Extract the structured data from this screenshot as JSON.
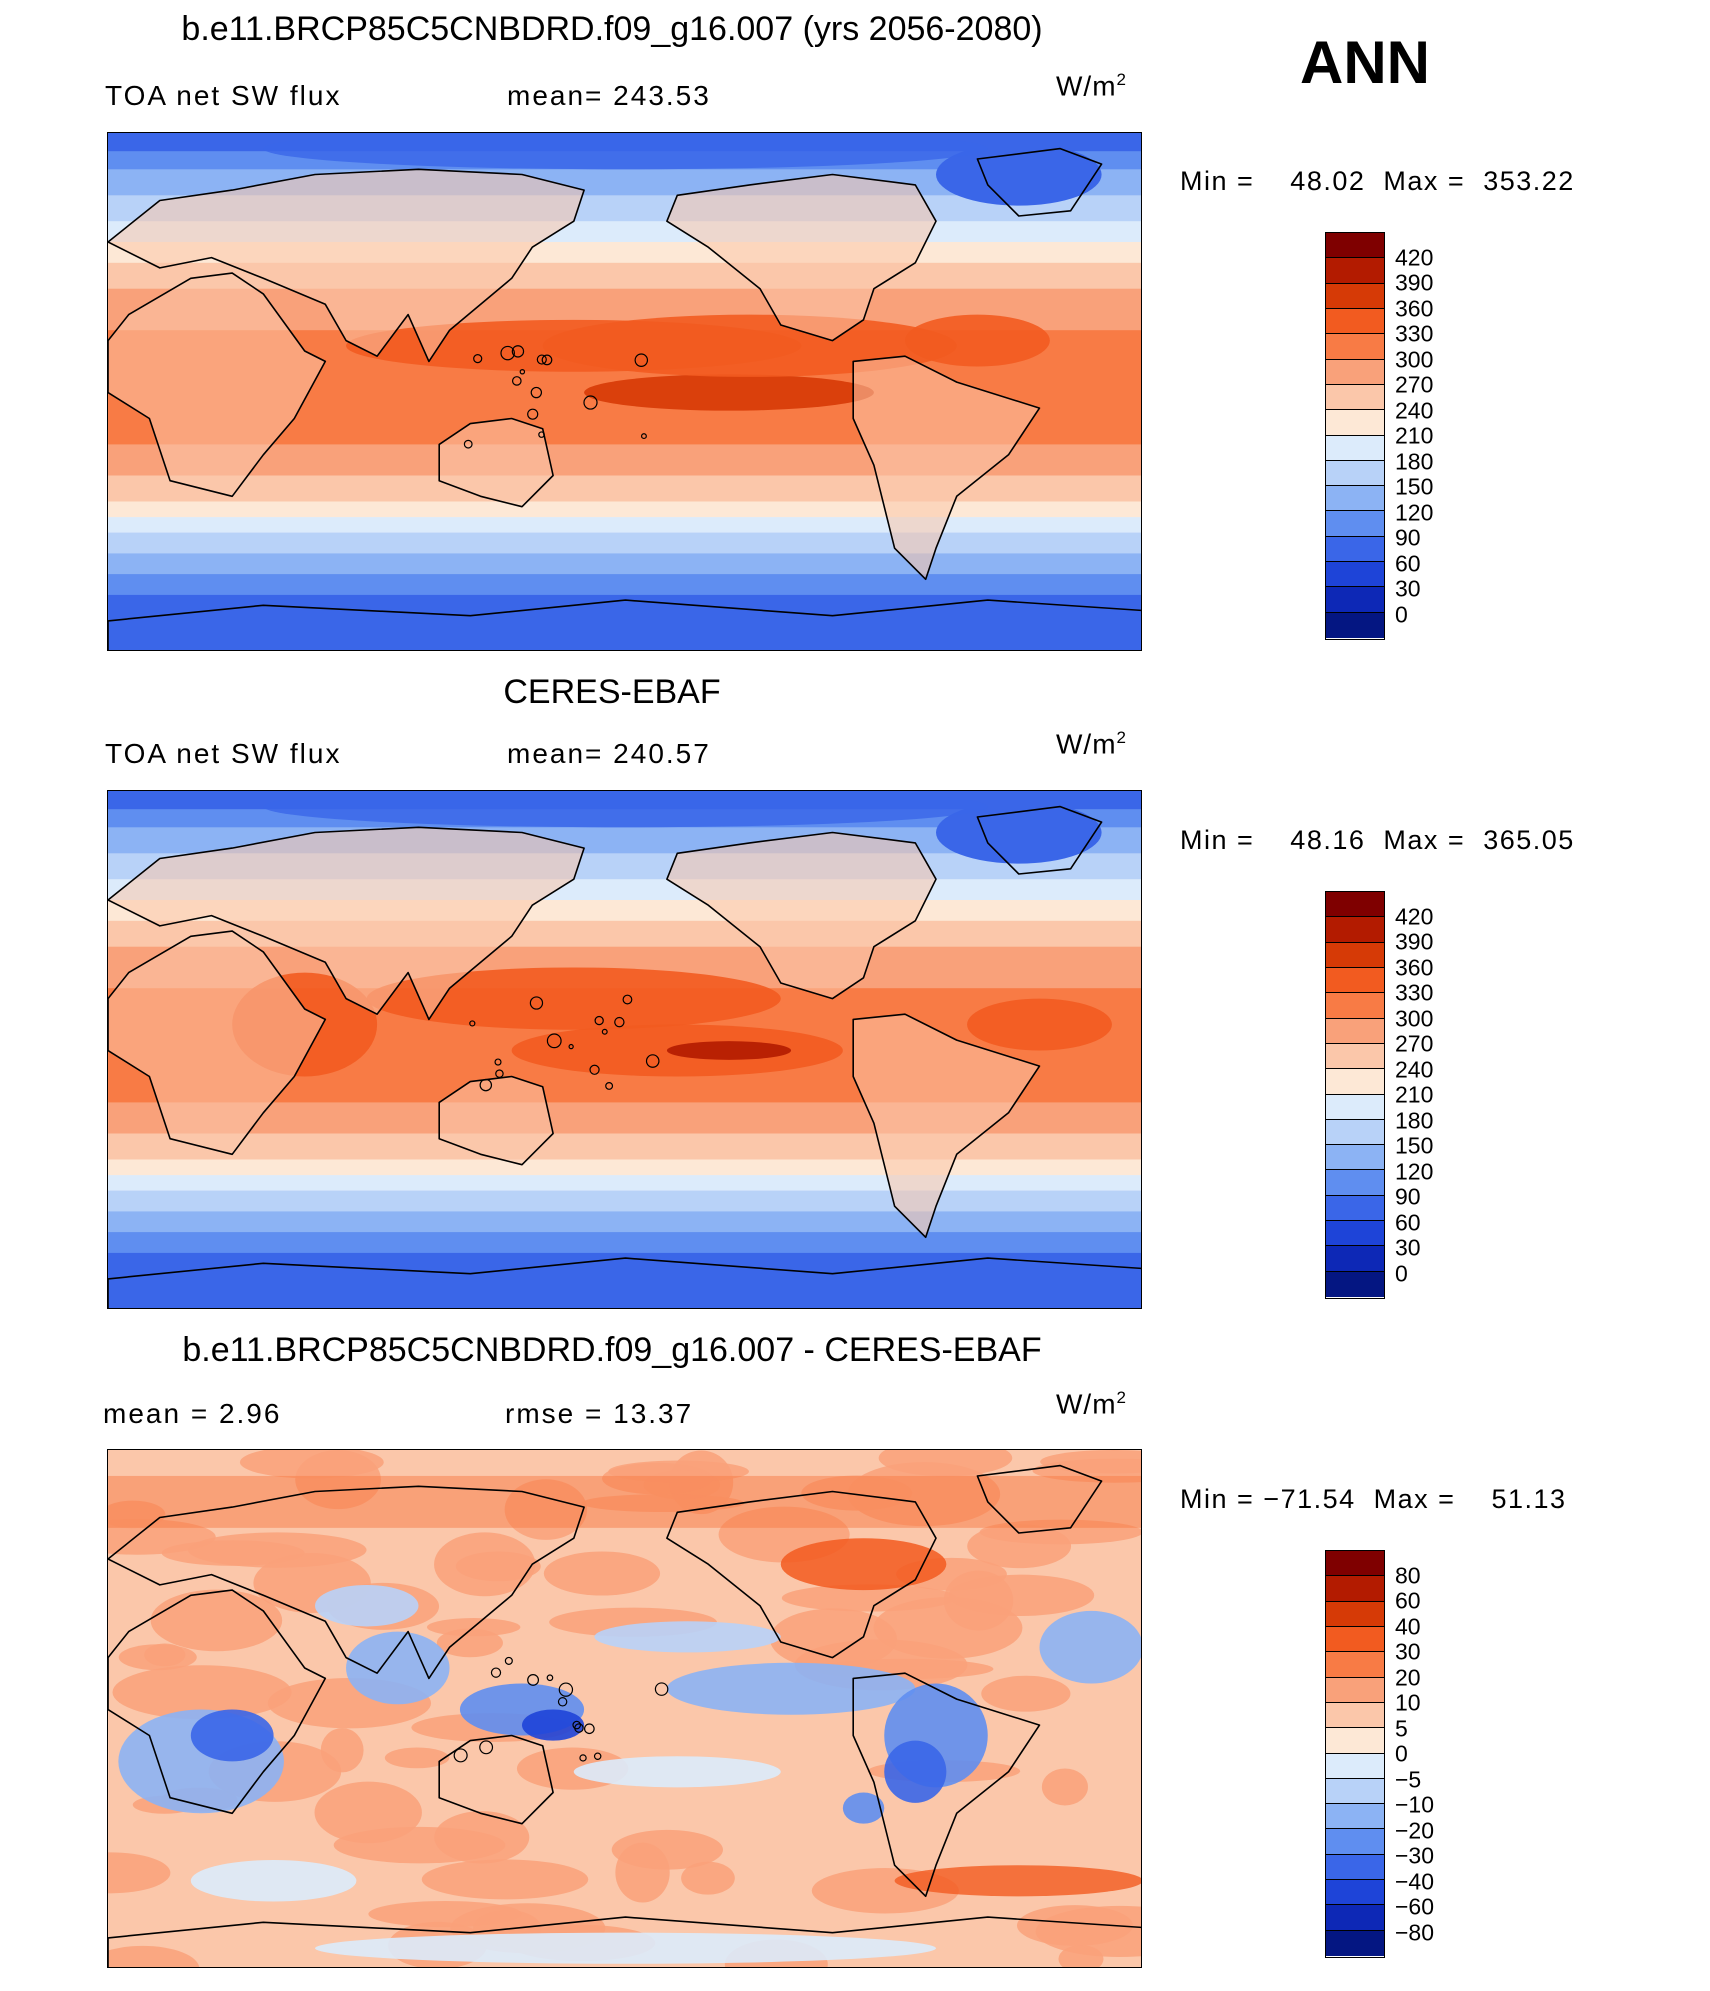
{
  "season": "ANN",
  "units": {
    "text": "W/m",
    "sup": "2"
  },
  "panels": [
    {
      "title": "b.e11.BRCP85C5CNBDRD.f09_g16.007 (yrs 2056-2080)",
      "variable": "TOA  net  SW  flux",
      "stat": "mean=  243.53",
      "min_label": "Min  =",
      "min_value": "48.02",
      "max_label": "Max  =",
      "max_value": "353.22",
      "scale": "abs"
    },
    {
      "title": "CERES-EBAF",
      "variable": "TOA  net  SW  flux",
      "stat": "mean=  240.57",
      "min_label": "Min  =",
      "min_value": "48.16",
      "max_label": "Max  =",
      "max_value": "365.05",
      "scale": "abs"
    },
    {
      "title": "b.e11.BRCP85C5CNBDRD.f09_g16.007 - CERES-EBAF",
      "variable": "mean  =      2.96",
      "stat": "rmse  =     13.37",
      "min_label": "Min  =",
      "min_value": "−71.54",
      "max_label": "Max  =",
      "max_value": "51.13",
      "scale": "diff"
    }
  ],
  "colorbars": {
    "abs": {
      "labels": [
        "420",
        "390",
        "360",
        "330",
        "300",
        "270",
        "240",
        "210",
        "180",
        "150",
        "120",
        "90",
        "60",
        "30",
        "0"
      ],
      "colors": [
        "#7f0000",
        "#b31b00",
        "#d63a06",
        "#f25b20",
        "#f87b45",
        "#f9a17a",
        "#fbc7aa",
        "#fde8d6",
        "#dcebfb",
        "#b8d2f8",
        "#8cb3f4",
        "#5f8ef0",
        "#3a66e8",
        "#1e44d8",
        "#0d28b6",
        "#041682"
      ]
    },
    "diff": {
      "labels": [
        "80",
        "60",
        "40",
        "30",
        "20",
        "10",
        "5",
        "0",
        "−5",
        "−10",
        "−20",
        "−30",
        "−40",
        "−60",
        "−80"
      ],
      "colors": [
        "#7f0000",
        "#b31b00",
        "#d63a06",
        "#f25b20",
        "#f87b45",
        "#f9a17a",
        "#fbc7aa",
        "#fde8d6",
        "#dcebfb",
        "#b8d2f8",
        "#8cb3f4",
        "#5f8ef0",
        "#3a66e8",
        "#1e44d8",
        "#0d28b6",
        "#041682"
      ]
    }
  }
}
